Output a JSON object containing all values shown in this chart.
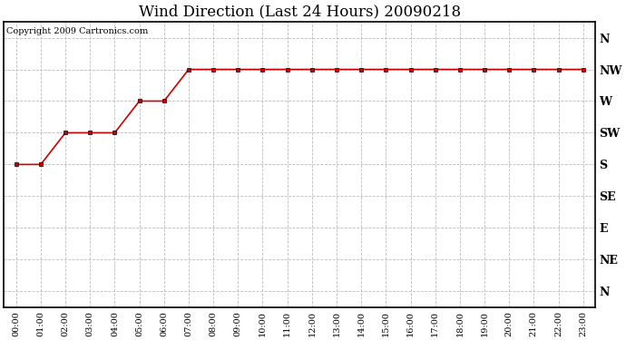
{
  "title": "Wind Direction (Last 24 Hours) 20090218",
  "copyright_text": "Copyright 2009 Cartronics.com",
  "x_labels": [
    "00:00",
    "01:00",
    "02:00",
    "03:00",
    "04:00",
    "05:00",
    "06:00",
    "07:00",
    "08:00",
    "09:00",
    "10:00",
    "11:00",
    "12:00",
    "13:00",
    "14:00",
    "15:00",
    "16:00",
    "17:00",
    "18:00",
    "19:00",
    "20:00",
    "21:00",
    "22:00",
    "23:00"
  ],
  "y_tick_positions": [
    0,
    1,
    2,
    3,
    4,
    5,
    6,
    7,
    8
  ],
  "y_tick_labels": [
    "N",
    "NE",
    "E",
    "SE",
    "S",
    "SW",
    "W",
    "NW",
    "N"
  ],
  "wind_data": [
    4,
    4,
    5,
    5,
    5,
    6,
    6,
    7,
    7,
    7,
    7,
    7,
    7,
    7,
    7,
    7,
    7,
    7,
    7,
    7,
    7,
    7,
    7,
    7
  ],
  "line_color": "#cc0000",
  "marker": "s",
  "marker_size": 3,
  "bg_color": "#ffffff",
  "plot_bg_color": "#ffffff",
  "grid_color": "#bbbbbb",
  "title_fontsize": 12,
  "copyright_fontsize": 7
}
